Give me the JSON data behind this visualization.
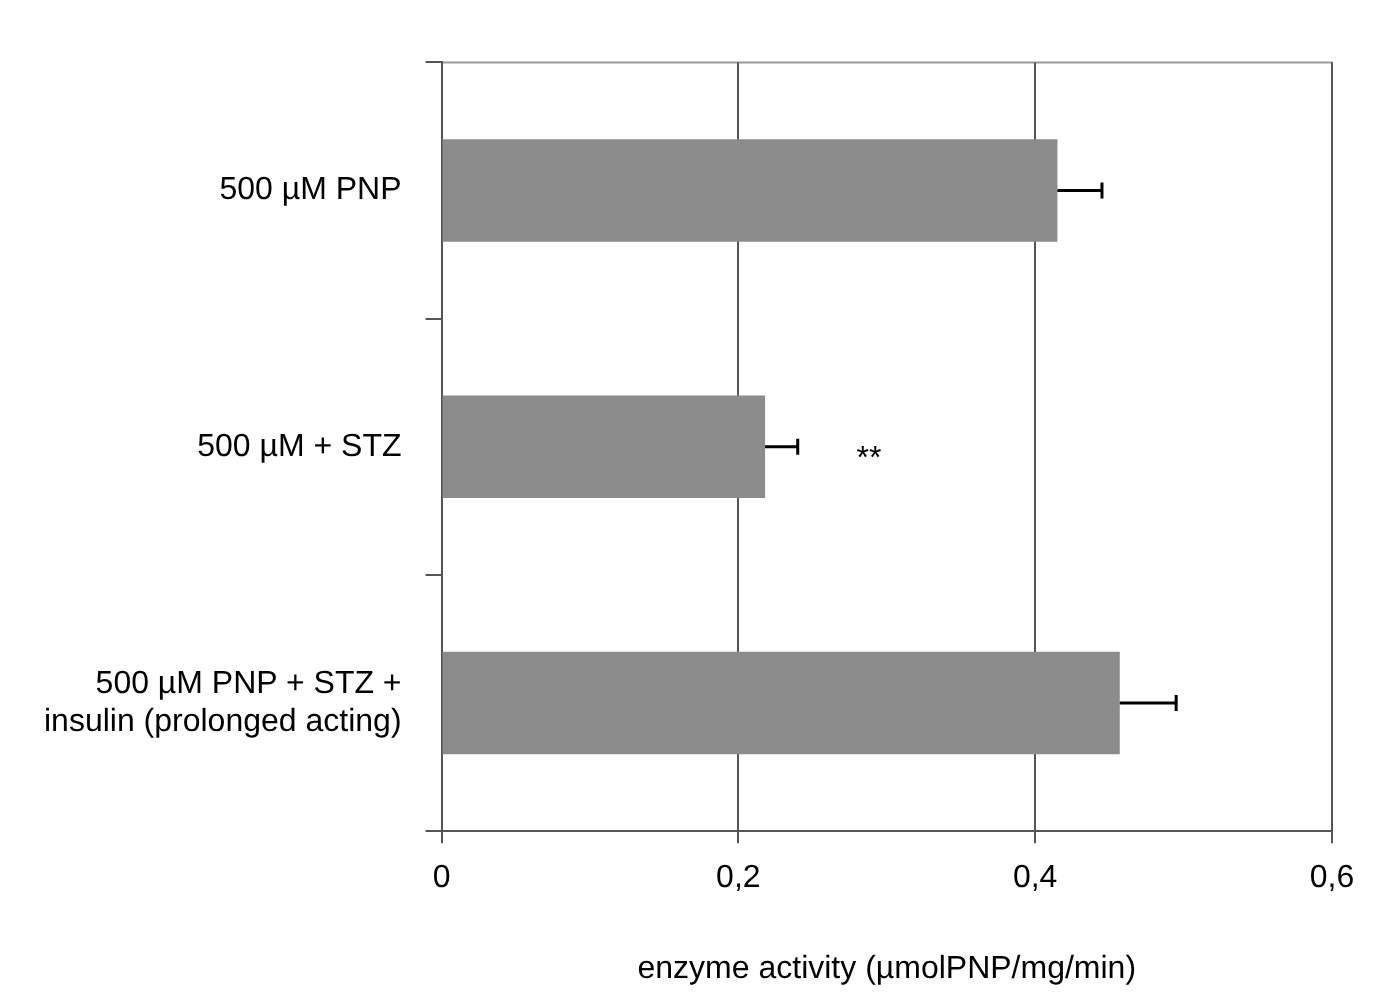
{
  "chart_data": {
    "type": "bar",
    "orientation": "horizontal",
    "categories": [
      "500 µM PNP",
      "500 µM + STZ",
      "500 µM PNP + STZ + insulin (prolonged acting)"
    ],
    "values": [
      0.415,
      0.218,
      0.457
    ],
    "errors": [
      [
        0.415,
        0.445
      ],
      [
        0.218,
        0.24
      ],
      [
        0.457,
        0.495
      ]
    ],
    "color": "#8c8c8c",
    "xlabel": "enzyme activity (µmolPNP/mg/min)",
    "xlim": [
      0,
      0.6
    ],
    "xticks": [
      {
        "value": 0,
        "label": "0"
      },
      {
        "value": 0.2,
        "label": "0,2"
      },
      {
        "value": 0.4,
        "label": "0,4"
      },
      {
        "value": 0.6,
        "label": "0,6"
      }
    ],
    "grid": "x",
    "legend": false,
    "annotations": [
      "**"
    ]
  }
}
